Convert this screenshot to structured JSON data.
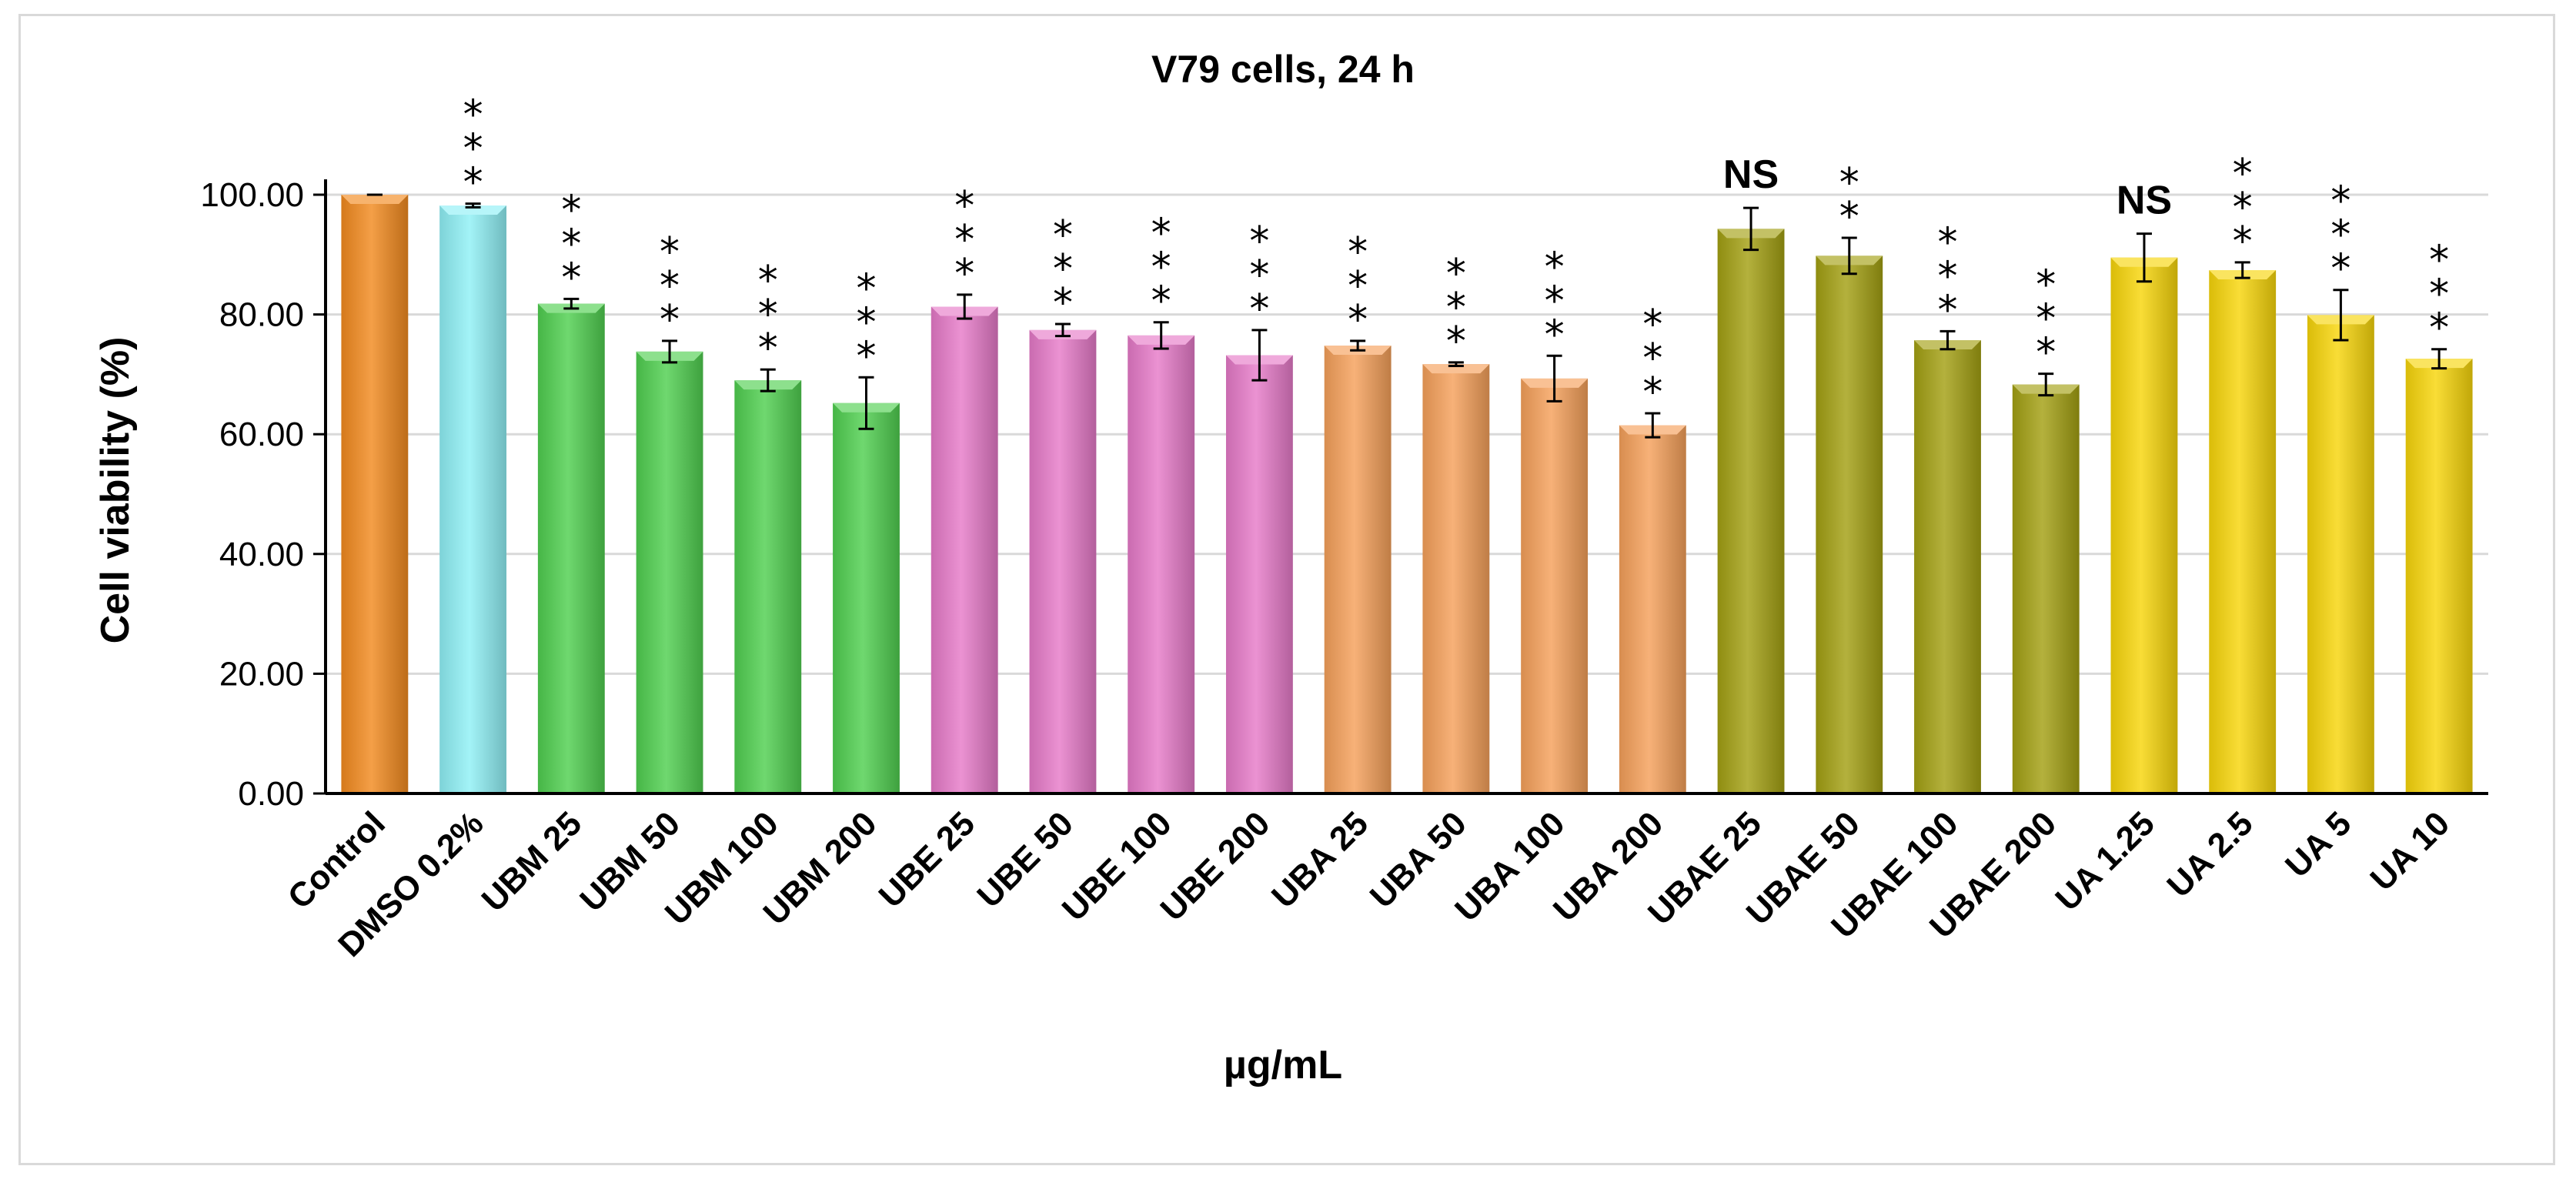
{
  "chart_data": {
    "type": "bar",
    "title": "V79 cells, 24 h",
    "xlabel": "µg/mL",
    "ylabel": "Cell viability  (%)",
    "ylim": [
      0,
      100
    ],
    "yticks": [
      "0.00",
      "20.00",
      "40.00",
      "60.00",
      "80.00",
      "100.00"
    ],
    "grid": true,
    "legend": "none",
    "categories": [
      "Control",
      "DMSO 0.2%",
      "UBM 25",
      "UBM 50",
      "UBM 100",
      "UBM 200",
      "UBE 25",
      "UBE 50",
      "UBE 100",
      "UBE 200",
      "UBA 25",
      "UBA 50",
      "UBA 100",
      "UBA 200",
      "UBAE 25",
      "UBAE 50",
      "UBAE 100",
      "UBAE 200",
      "UA 1.25",
      "UA 2.5",
      "UA 5",
      "UA 10"
    ],
    "values": [
      100.0,
      98.2,
      81.8,
      73.8,
      69.0,
      65.2,
      81.3,
      77.4,
      76.5,
      73.2,
      74.8,
      71.7,
      69.3,
      61.5,
      94.3,
      89.8,
      75.7,
      68.3,
      89.5,
      87.4,
      79.9,
      72.6
    ],
    "errors": [
      0.0,
      0.3,
      0.8,
      1.8,
      1.8,
      4.3,
      2.0,
      1.0,
      2.2,
      4.2,
      0.8,
      0.3,
      3.8,
      2.0,
      3.5,
      3.0,
      1.5,
      1.8,
      4.0,
      1.3,
      4.2,
      1.6
    ],
    "significance": [
      "",
      "***",
      "***",
      "***",
      "***",
      "***",
      "***",
      "***",
      "***",
      "***",
      "***",
      "***",
      "***",
      "***",
      "NS",
      "**",
      "***",
      "***",
      "NS",
      "***",
      "***",
      "***"
    ],
    "colors": [
      "#f28a1f",
      "#8ff0f5",
      "#4fcf4f",
      "#4fcf4f",
      "#4fcf4f",
      "#4fcf4f",
      "#e67ac8",
      "#e67ac8",
      "#e67ac8",
      "#e67ac8",
      "#f5a05a",
      "#f5a05a",
      "#f5a05a",
      "#f5a05a",
      "#a3a012",
      "#a3a012",
      "#a3a012",
      "#a3a012",
      "#f8d60a",
      "#f8d60a",
      "#f8d60a",
      "#f8d60a"
    ]
  }
}
